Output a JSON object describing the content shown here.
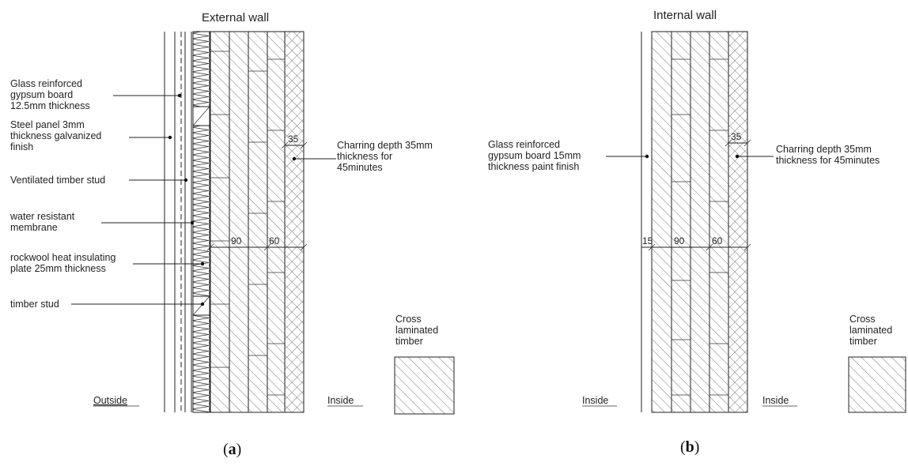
{
  "figure_a": {
    "title": "External wall",
    "caption_pre": "(",
    "caption_letter": "a",
    "caption_post": ")",
    "left_label": "Outside",
    "right_label": "Inside",
    "legend_label": [
      "Cross",
      "laminated",
      "timber"
    ],
    "annotations": [
      {
        "lines": [
          "Glass reinforced",
          "gypsum board",
          "12.5mm thickness"
        ]
      },
      {
        "lines": [
          "Steel panel 3mm",
          "thickness galvanized",
          "finish"
        ]
      },
      {
        "lines": [
          "Ventilated timber stud"
        ]
      },
      {
        "lines": [
          "water resistant",
          "membrane"
        ]
      },
      {
        "lines": [
          "rockwool heat insulating",
          "plate 25mm thickness"
        ]
      },
      {
        "lines": [
          "timber stud"
        ]
      }
    ],
    "charring_note": [
      "Charring depth 35mm",
      "thickness for",
      "45minutes"
    ],
    "dims": {
      "charring": "35",
      "layer1": "90",
      "layer2": "60"
    }
  },
  "figure_b": {
    "title": "Internal wall",
    "caption_pre": "(",
    "caption_letter": "b",
    "caption_post": ")",
    "left_label": "Inside",
    "right_label": "Inside",
    "legend_label": [
      "Cross",
      "laminated",
      "timber"
    ],
    "annotations": [
      {
        "lines": [
          "Glass reinforced",
          "gypsum board 15mm",
          "thickness paint finish"
        ]
      }
    ],
    "charring_note": [
      "Charring depth 35mm",
      "thickness for 45minutes"
    ],
    "dims": {
      "charring": "35",
      "board": "15",
      "layer1": "90",
      "layer2": "60"
    }
  }
}
